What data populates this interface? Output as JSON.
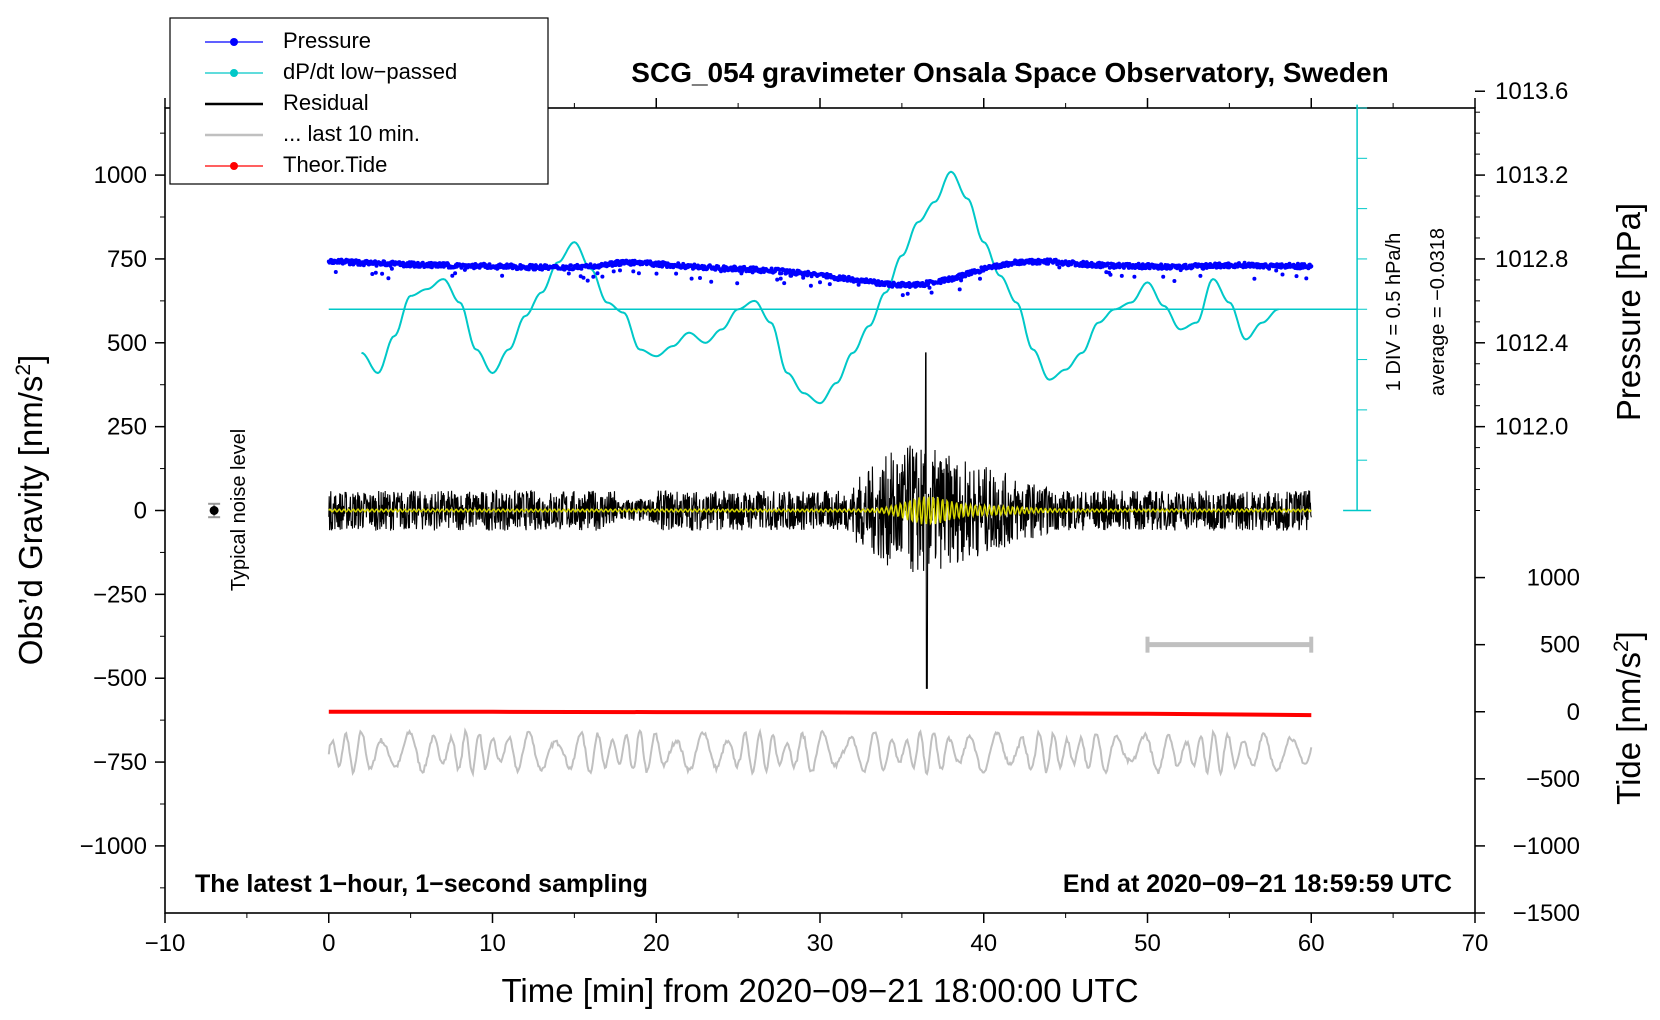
{
  "chart_data": {
    "type": "line",
    "title": "SCG_054 gravimeter Onsala Space Observatory, Sweden",
    "xlabel": "Time [min] from 2020−09−21 18:00:00 UTC",
    "ylabel_left": "Obs’d Gravity [nm/s",
    "ylabel_left_sup": "2",
    "ylabel_left_close": "]",
    "ylabel_right_pressure": "Pressure [hPa]",
    "ylabel_right_tide": "Tide [nm/s",
    "ylabel_right_tide_sup": "2",
    "ylabel_right_tide_close": "]",
    "xlim": [
      -10,
      70
    ],
    "ylim_left": [
      -1200,
      1200
    ],
    "x_ticks": [
      "−10",
      "0",
      "10",
      "20",
      "30",
      "40",
      "50",
      "60",
      "70"
    ],
    "x_tick_values": [
      -10,
      0,
      10,
      20,
      30,
      40,
      50,
      60,
      70
    ],
    "y_ticks_left": [
      "1000",
      "750",
      "500",
      "250",
      "0",
      "−250",
      "−500",
      "−750",
      "−1000"
    ],
    "y_tick_values_left": [
      1000,
      750,
      500,
      250,
      0,
      -250,
      -500,
      -750,
      -1000
    ],
    "pressure_ticks": [
      "1013.6",
      "1013.2",
      "1012.8",
      "1012.4",
      "1012.0"
    ],
    "pressure_tick_values": [
      1013.6,
      1013.2,
      1012.8,
      1012.4,
      1012.0
    ],
    "pressure_axis_map": {
      "pressure_at_gravity_0": 1011.6,
      "hpa_per_gravity_unit": 0.0016
    },
    "tide_ticks": [
      "1000",
      "500",
      "0",
      "−500",
      "−1000",
      "−1500"
    ],
    "tide_tick_values": [
      1000,
      500,
      0,
      -500,
      -1000,
      -1500
    ],
    "tide_axis_map": {
      "gravity_at_tide_0": -600,
      "gravity_per_tide_unit": 0.4
    },
    "legend": [
      {
        "label": "Pressure",
        "color": "#0000ff",
        "style": "line-dot"
      },
      {
        "label": "dP/dt low−passed",
        "color": "#00c8c8",
        "style": "line-dot"
      },
      {
        "label": "Residual",
        "color": "#000000",
        "style": "line"
      },
      {
        "label": "... last 10 min.",
        "color": "#c0c0c0",
        "style": "line"
      },
      {
        "label": "Theor.Tide",
        "color": "#ff0000",
        "style": "line-dot"
      }
    ],
    "series": [
      {
        "name": "Pressure",
        "color": "#0000ff",
        "x": [
          0,
          2,
          4,
          6,
          8,
          10,
          12,
          14,
          16,
          18,
          20,
          22,
          24,
          26,
          28,
          30,
          32,
          34,
          36,
          38,
          40,
          42,
          44,
          46,
          48,
          50,
          52,
          54,
          56,
          58,
          60
        ],
        "y": [
          745,
          738,
          735,
          732,
          730,
          728,
          726,
          724,
          728,
          740,
          735,
          728,
          722,
          718,
          712,
          702,
          688,
          675,
          672,
          690,
          720,
          740,
          742,
          735,
          730,
          728,
          726,
          730,
          732,
          730,
          728
        ]
      },
      {
        "name": "dP/dt low-passed",
        "color": "#00c8c8",
        "x": [
          2,
          3,
          4,
          5,
          6,
          7,
          8,
          9,
          10,
          11,
          12,
          13,
          14,
          15,
          16,
          17,
          18,
          19,
          20,
          21,
          22,
          23,
          24,
          25,
          26,
          27,
          28,
          29,
          30,
          31,
          32,
          33,
          34,
          35,
          36,
          37,
          38,
          39,
          40,
          41,
          42,
          43,
          44,
          45,
          46,
          47,
          48,
          49,
          50,
          51,
          52,
          53,
          54,
          55,
          56,
          57,
          58
        ],
        "y": [
          470,
          410,
          520,
          640,
          660,
          690,
          620,
          480,
          410,
          480,
          580,
          650,
          740,
          800,
          720,
          620,
          590,
          480,
          460,
          490,
          530,
          500,
          540,
          600,
          625,
          560,
          410,
          350,
          320,
          380,
          470,
          550,
          650,
          760,
          860,
          920,
          1010,
          930,
          800,
          700,
          620,
          480,
          390,
          420,
          470,
          560,
          600,
          620,
          680,
          610,
          540,
          560,
          690,
          620,
          510,
          560,
          600
        ]
      },
      {
        "name": "Residual",
        "color": "#000000",
        "x": [
          0,
          60
        ],
        "y": [
          0,
          0
        ],
        "amplitude_envelope": {
          "base": 60,
          "event_center_min": 36.5,
          "event_peak_min": 470,
          "event_trough_min": -530
        }
      },
      {
        "name": "... last 10 min.",
        "color": "#c0c0c0",
        "x": [
          0,
          60
        ],
        "y": [
          -720,
          -720
        ],
        "amplitude": 60
      },
      {
        "name": "Theor.Tide",
        "color": "#ff0000",
        "x": [
          0,
          10,
          20,
          30,
          40,
          50,
          60
        ],
        "y": [
          -600,
          -600,
          -601,
          -602,
          -604,
          -606,
          -610
        ]
      }
    ],
    "dp_dt_zero_line": 600,
    "noise_level": {
      "x": -7,
      "y": 0,
      "err": 20,
      "label": "Typical noise level"
    },
    "gray_scale_bar": {
      "x_start": 50,
      "x_end": 60,
      "y": -400
    },
    "pressure_rate_note": "1 DIV = 0.5 hPa/h",
    "average_note": "average = −0.0318",
    "footer_left": "The latest 1−hour, 1−second sampling",
    "footer_right": "End at 2020−09−21 18:59:59 UTC"
  }
}
